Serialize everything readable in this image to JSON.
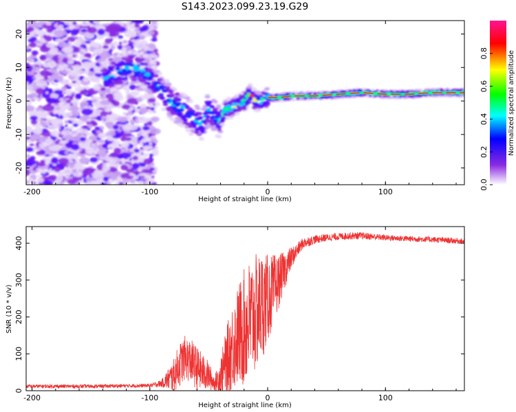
{
  "figure_title": "S143.2023.099.23.19.G29",
  "chart_data": [
    {
      "type": "heatmap",
      "xlabel": "Height of straight line (km)",
      "ylabel": "Frequency (Hz)",
      "xlim": [
        -205,
        167
      ],
      "ylim": [
        -25,
        24
      ],
      "xticks": [
        -200,
        -100,
        0,
        100
      ],
      "yticks": [
        -20,
        -10,
        0,
        10,
        20
      ],
      "colorbar": {
        "label": "Normalized spectral amplitude",
        "range": [
          0,
          1
        ],
        "ticks": [
          0.0,
          0.2,
          0.4,
          0.6,
          0.8
        ],
        "colors": [
          "#ffffff",
          "#8a2be2",
          "#0000ff",
          "#00ffff",
          "#00ff00",
          "#ffff00",
          "#ff0000",
          "#ff1493"
        ]
      },
      "ridge": {
        "x": [
          -200,
          -170,
          -150,
          -135,
          -125,
          -115,
          -105,
          -95,
          -88,
          -80,
          -70,
          -62,
          -55,
          -50,
          -46,
          -42,
          -38,
          -34,
          -30,
          -25,
          -20,
          -15,
          -10,
          -5,
          0,
          10,
          20,
          40,
          60,
          80,
          100,
          120,
          140,
          167
        ],
        "y": [
          -5,
          2,
          5,
          7,
          9,
          10,
          9,
          5,
          2,
          -1,
          -3,
          -6,
          -7,
          -2,
          -4,
          -6,
          -4,
          -2,
          -2,
          -1,
          0,
          2,
          0,
          0,
          1,
          1,
          1.5,
          1.5,
          2,
          2.5,
          2,
          2,
          2.5,
          2.5
        ]
      }
    },
    {
      "type": "line",
      "xlabel": "Height of straight line (km)",
      "ylabel": "SNR (10 * v/v)",
      "xlim": [
        -205,
        167
      ],
      "ylim": [
        0,
        445
      ],
      "xticks": [
        -200,
        -100,
        0,
        100
      ],
      "yticks": [
        0,
        100,
        200,
        300,
        400
      ],
      "color": "#ee3333",
      "envelope": {
        "x": [
          -205,
          -150,
          -100,
          -90,
          -80,
          -75,
          -70,
          -65,
          -60,
          -55,
          -50,
          -45,
          -40,
          -35,
          -30,
          -25,
          -20,
          -15,
          -10,
          -5,
          0,
          5,
          10,
          15,
          20,
          25,
          30,
          40,
          50,
          60,
          70,
          80,
          100,
          120,
          140,
          167
        ],
        "y": [
          12,
          12,
          14,
          20,
          40,
          70,
          90,
          80,
          60,
          50,
          40,
          20,
          40,
          80,
          120,
          150,
          170,
          190,
          210,
          230,
          250,
          270,
          300,
          330,
          360,
          380,
          400,
          410,
          415,
          418,
          420,
          420,
          415,
          412,
          410,
          405
        ],
        "noise": [
          5,
          5,
          5,
          10,
          45,
          60,
          60,
          60,
          60,
          50,
          40,
          20,
          50,
          90,
          120,
          140,
          160,
          170,
          160,
          150,
          120,
          100,
          70,
          50,
          30,
          20,
          15,
          12,
          10,
          10,
          10,
          10,
          8,
          8,
          8,
          8
        ]
      }
    }
  ]
}
